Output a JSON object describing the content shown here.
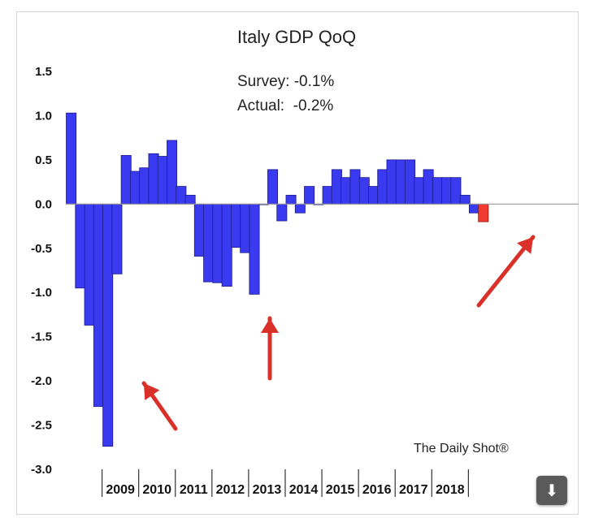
{
  "chart_data": {
    "type": "bar",
    "title": "Italy GDP QoQ",
    "annotation_lines": [
      "Survey: -0.1%",
      "Actual:  -0.2%"
    ],
    "credit": "The Daily Shot®",
    "ylim": [
      -3.0,
      1.5
    ],
    "yticks": [
      "1.5",
      "1.0",
      "0.5",
      "0.0",
      "-0.5",
      "-1.0",
      "-1.5",
      "-2.0",
      "-2.5",
      "-3.0"
    ],
    "year_labels": [
      "2009",
      "2010",
      "2011",
      "2012",
      "2013",
      "2014",
      "2015",
      "2016",
      "2017",
      "2018"
    ],
    "values": [
      1.03,
      -0.95,
      -1.37,
      -2.29,
      -2.74,
      -0.79,
      0.55,
      0.37,
      0.41,
      0.57,
      0.54,
      0.72,
      0.2,
      0.1,
      -0.59,
      -0.88,
      -0.89,
      -0.93,
      -0.49,
      -0.55,
      -1.02,
      0.0,
      0.39,
      -0.19,
      0.1,
      -0.1,
      0.2,
      0.0,
      0.2,
      0.39,
      0.3,
      0.39,
      0.3,
      0.2,
      0.39,
      0.5,
      0.5,
      0.5,
      0.3,
      0.39,
      0.3,
      0.3,
      0.3,
      0.1,
      -0.1,
      -0.2
    ],
    "colors": {
      "bar": "#3a3af0",
      "bar_edge": "#1c1c8a",
      "highlight": "#f03a2e",
      "arrow": "#d9302a"
    },
    "grid": false
  },
  "download_icon": "download-arrow-icon",
  "download_glyph": "⬇"
}
